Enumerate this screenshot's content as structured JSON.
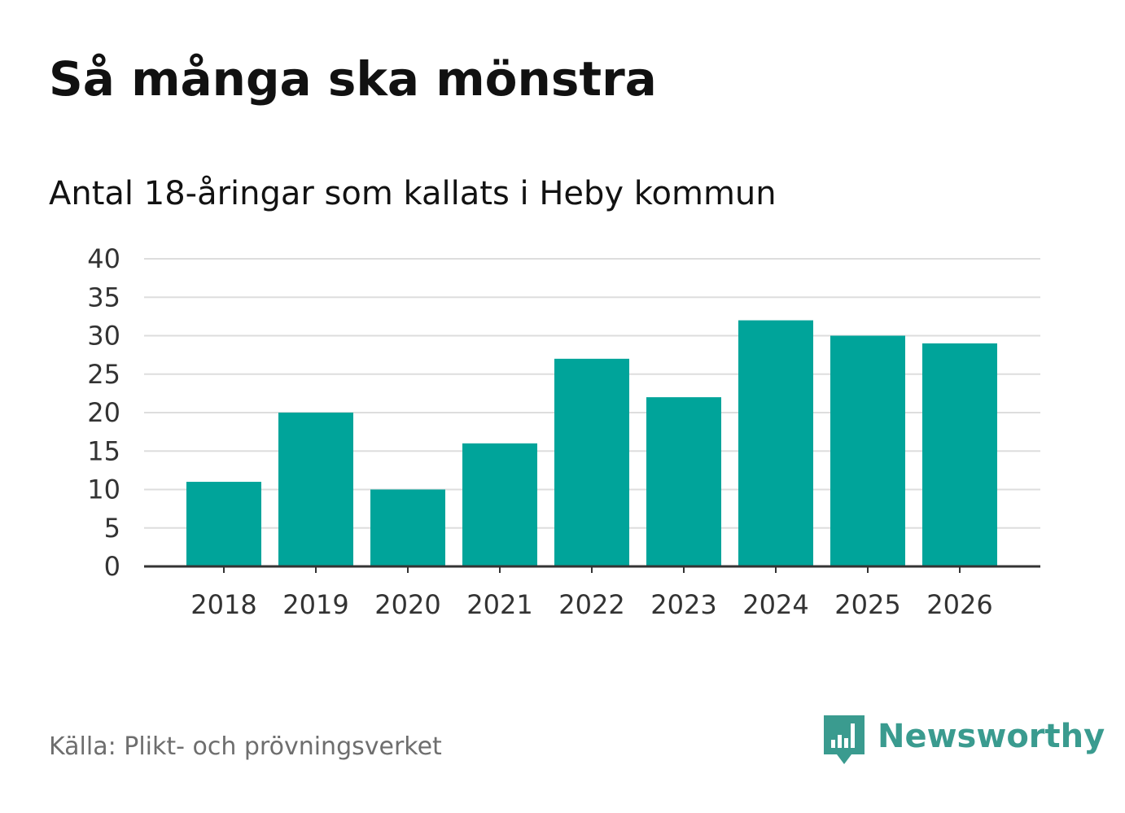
{
  "title": "Så många ska mönstra",
  "subtitle": "Antal 18-åringar som kallats i Heby kommun",
  "source": "Källa: Plikt- och prövningsverket",
  "brand": {
    "name": "Newsworthy",
    "color": "#3a9b8f"
  },
  "colors": {
    "bar": "#00a49a",
    "grid": "#dddddd",
    "axis": "#333333",
    "tick_text": "#333333"
  },
  "chart_data": {
    "type": "bar",
    "title": "Så många ska mönstra",
    "subtitle": "Antal 18-åringar som kallats i Heby kommun",
    "categories": [
      "2018",
      "2019",
      "2020",
      "2021",
      "2022",
      "2023",
      "2024",
      "2025",
      "2026"
    ],
    "values": [
      11,
      20,
      10,
      16,
      27,
      22,
      32,
      30,
      29
    ],
    "xlabel": "",
    "ylabel": "",
    "ylim": [
      0,
      40
    ],
    "yticks": [
      0,
      5,
      10,
      15,
      20,
      25,
      30,
      35,
      40
    ],
    "grid": true,
    "legend": "none"
  }
}
